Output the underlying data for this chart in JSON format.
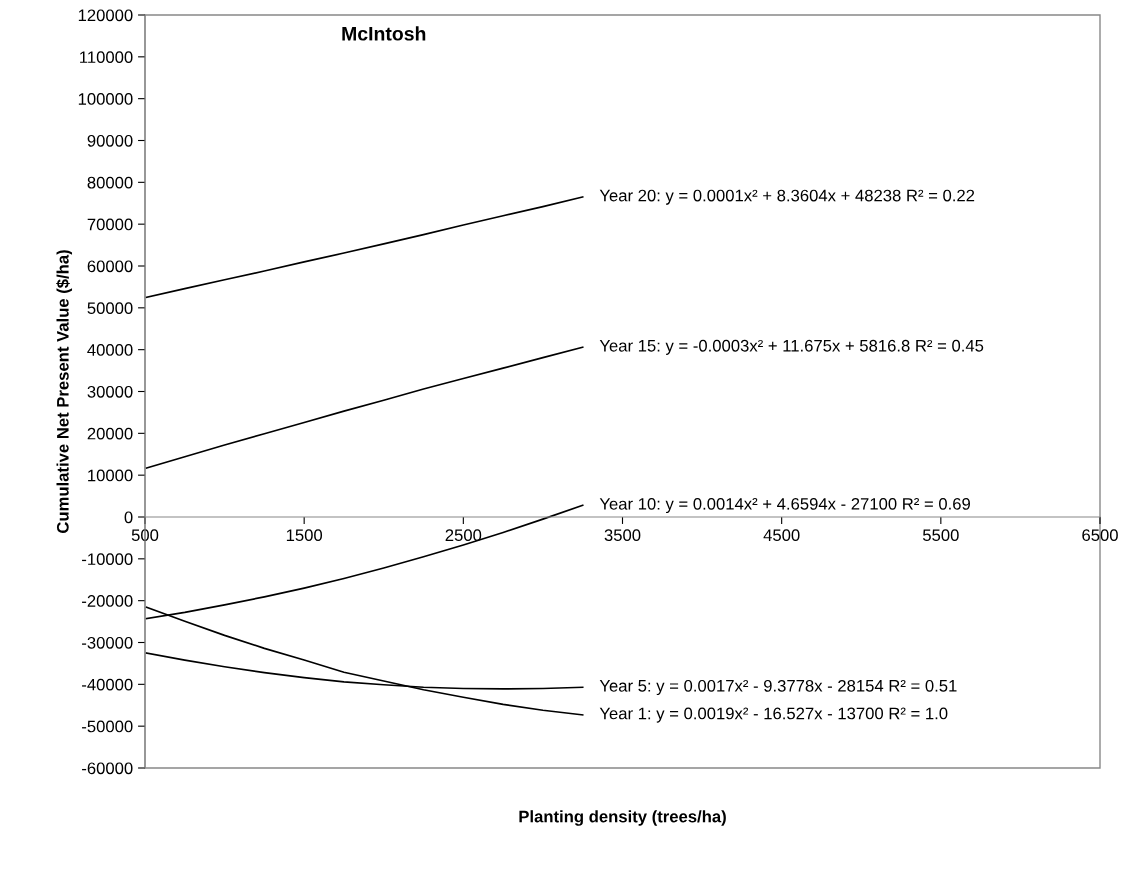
{
  "chart_data": {
    "type": "line",
    "title": "McIntosh",
    "xlabel": "Planting density (trees/ha)",
    "ylabel": "Cumulative Net Present Value ($/ha)",
    "xlim": [
      500,
      6500
    ],
    "xticks": [
      500,
      1500,
      2500,
      3500,
      4500,
      5500,
      6500
    ],
    "ylim": [
      -60000,
      120000
    ],
    "yticks": [
      -60000,
      -50000,
      -40000,
      -30000,
      -20000,
      -10000,
      0,
      10000,
      20000,
      30000,
      40000,
      50000,
      60000,
      70000,
      80000,
      90000,
      100000,
      110000,
      120000
    ],
    "grid": false,
    "legend": false,
    "marker": "none",
    "line_style": "solid",
    "series": [
      {
        "name": "Year 20: y = 0.0001x² + 8.3604x + 48238 R² = 0.22",
        "color": "#000000",
        "x": [
          510,
          750,
          1000,
          1250,
          1500,
          1750,
          2000,
          2250,
          2500,
          2750,
          3000,
          3250
        ],
        "values": [
          52500,
          54600,
          56700,
          58800,
          61000,
          63100,
          65300,
          67500,
          69800,
          72000,
          74200,
          76500
        ]
      },
      {
        "name": "Year 15: y = -0.0003x² + 11.675x + 5816.8 R² = 0.45",
        "color": "#000000",
        "x": [
          510,
          750,
          1000,
          1250,
          1500,
          1750,
          2000,
          2250,
          2500,
          2750,
          3000,
          3250
        ],
        "values": [
          11700,
          14400,
          17200,
          19900,
          22600,
          25300,
          27900,
          30600,
          33100,
          35600,
          38100,
          40600
        ]
      },
      {
        "name": "Year 10: y = 0.0014x² + 4.6594x - 27100 R² = 0.69",
        "color": "#000000",
        "x": [
          510,
          750,
          1000,
          1250,
          1500,
          1750,
          2000,
          2250,
          2500,
          2750,
          3000,
          3250
        ],
        "values": [
          -24300,
          -22800,
          -21000,
          -19100,
          -17000,
          -14700,
          -12200,
          -9500,
          -6700,
          -3700,
          -500,
          2800
        ]
      },
      {
        "name": "Year 5: y = 0.0017x² - 9.3778x - 28154 R² = 0.51",
        "color": "#000000",
        "x": [
          510,
          750,
          1000,
          1250,
          1500,
          1750,
          2000,
          2250,
          2500,
          2750,
          3000,
          3250
        ],
        "values": [
          -32500,
          -34200,
          -35800,
          -37200,
          -38400,
          -39400,
          -40100,
          -40700,
          -41000,
          -41100,
          -41000,
          -40700
        ]
      },
      {
        "name": "Year 1: y = 0.0019x² - 16.527x - 13700 R² = 1.0",
        "color": "#000000",
        "x": [
          510,
          750,
          1000,
          1250,
          1500,
          1750,
          2000,
          2250,
          2500,
          2750,
          3000,
          3250
        ],
        "values": [
          -21600,
          -24900,
          -28300,
          -31400,
          -34200,
          -37100,
          -39200,
          -41300,
          -43100,
          -44800,
          -46200,
          -47300
        ]
      }
    ]
  }
}
